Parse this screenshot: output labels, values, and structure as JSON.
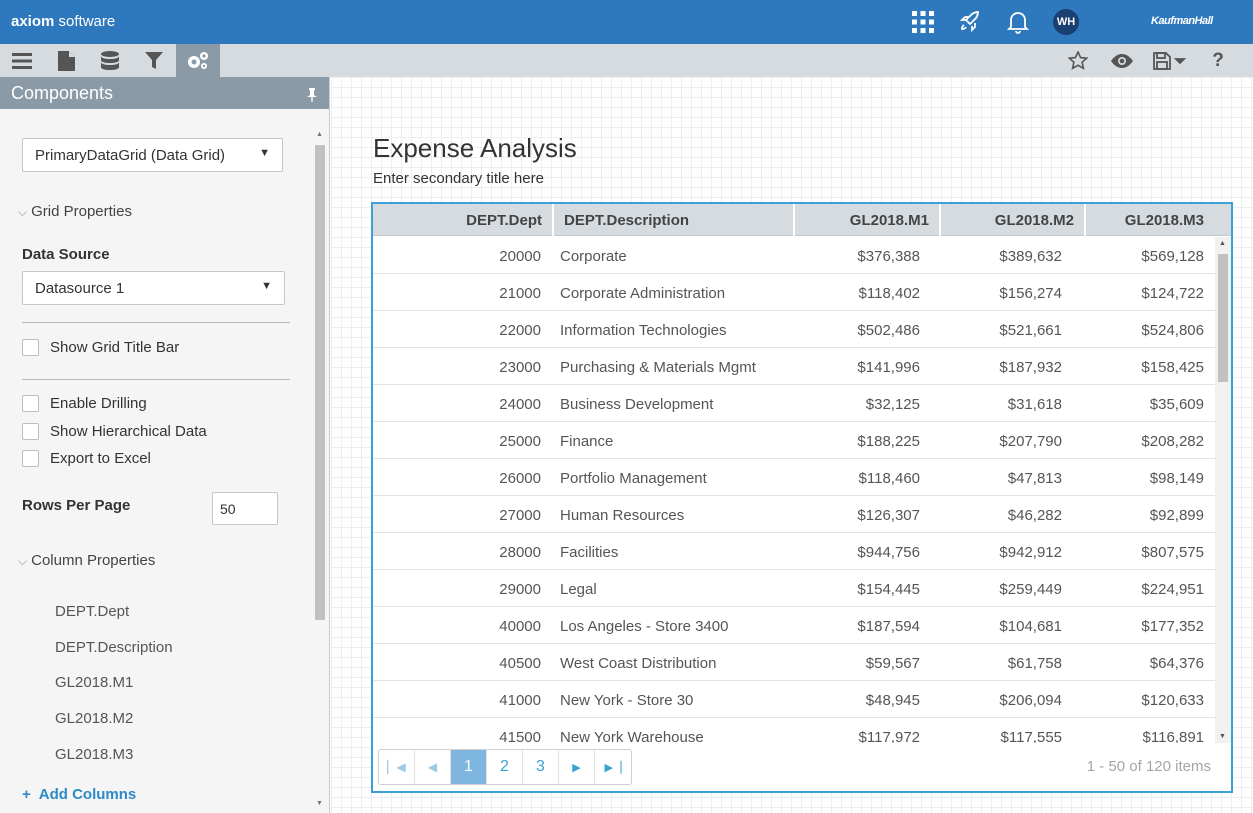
{
  "app": {
    "brand_bold": "axiom",
    "brand_rest": " software",
    "user_initials": "WH",
    "vendor": "KaufmanHall"
  },
  "panel": {
    "title": "Components",
    "component_select": "PrimaryDataGrid (Data Grid)",
    "grid_properties_label": "Grid Properties",
    "data_source_label": "Data Source",
    "data_source_value": "Datasource 1",
    "show_title_bar": "Show Grid Title Bar",
    "enable_drilling": "Enable Drilling",
    "show_hierarchical": "Show Hierarchical Data",
    "export_excel": "Export to Excel",
    "rows_per_page_label": "Rows Per Page",
    "rows_per_page_value": "50",
    "column_properties_label": "Column Properties",
    "columns": [
      "DEPT.Dept",
      "DEPT.Description",
      "GL2018.M1",
      "GL2018.M2",
      "GL2018.M3"
    ],
    "add_columns": "Add Columns"
  },
  "page": {
    "title": "Expense Analysis",
    "subtitle": "Enter secondary title here"
  },
  "grid": {
    "headers": [
      "DEPT.Dept",
      "DEPT.Description",
      "GL2018.M1",
      "GL2018.M2",
      "GL2018.M3"
    ],
    "rows": [
      [
        "20000",
        "Corporate",
        "$376,388",
        "$389,632",
        "$569,128"
      ],
      [
        "21000",
        "Corporate Administration",
        "$118,402",
        "$156,274",
        "$124,722"
      ],
      [
        "22000",
        "Information Technologies",
        "$502,486",
        "$521,661",
        "$524,806"
      ],
      [
        "23000",
        "Purchasing & Materials Mgmt",
        "$141,996",
        "$187,932",
        "$158,425"
      ],
      [
        "24000",
        "Business Development",
        "$32,125",
        "$31,618",
        "$35,609"
      ],
      [
        "25000",
        "Finance",
        "$188,225",
        "$207,790",
        "$208,282"
      ],
      [
        "26000",
        "Portfolio Management",
        "$118,460",
        "$47,813",
        "$98,149"
      ],
      [
        "27000",
        "Human Resources",
        "$126,307",
        "$46,282",
        "$92,899"
      ],
      [
        "28000",
        "Facilities",
        "$944,756",
        "$942,912",
        "$807,575"
      ],
      [
        "29000",
        "Legal",
        "$154,445",
        "$259,449",
        "$224,951"
      ],
      [
        "40000",
        "Los Angeles - Store 3400",
        "$187,594",
        "$104,681",
        "$177,352"
      ],
      [
        "40500",
        "West Coast Distribution",
        "$59,567",
        "$61,758",
        "$64,376"
      ],
      [
        "41000",
        "New York - Store 30",
        "$48,945",
        "$206,094",
        "$120,633"
      ],
      [
        "41500",
        "New York Warehouse",
        "$117,972",
        "$117,555",
        "$116,891"
      ]
    ],
    "pages": [
      "1",
      "2",
      "3"
    ],
    "current_page": "1",
    "pager_info": "1 - 50 of 120 items"
  }
}
